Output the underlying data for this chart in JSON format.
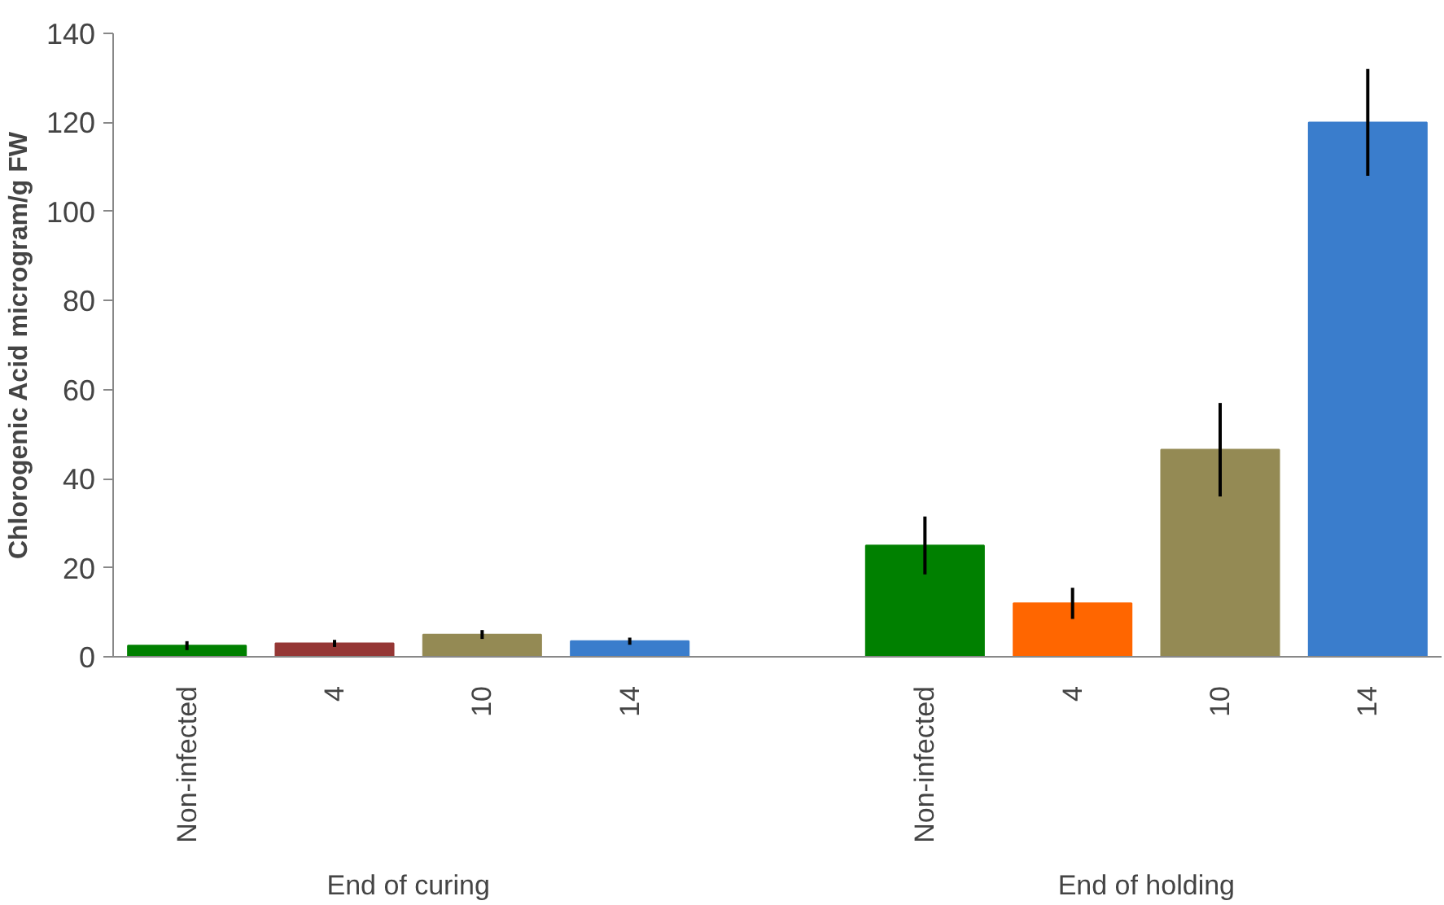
{
  "chart_data": {
    "type": "bar",
    "ylabel": "Chlorogenic Acid microgram/g FW",
    "categories": [
      "Non-infected",
      "4",
      "10",
      "14",
      null,
      "Non-infected",
      "4",
      "10",
      "14"
    ],
    "values": [
      2.5,
      3,
      5,
      3.5,
      null,
      25,
      12,
      46.5,
      120
    ],
    "errors": [
      1,
      0.8,
      1,
      0.8,
      null,
      6.5,
      3.5,
      10.5,
      12
    ],
    "colors": [
      "#008000",
      "#953735",
      "#948a54",
      "#3a7dcc",
      "#ffffff",
      "#008000",
      "#ff6600",
      "#948a54",
      "#3a7dcc"
    ],
    "annotations": [
      "End of curing",
      "End of holding"
    ],
    "ylim": [
      0,
      140
    ],
    "yticks": [
      0,
      20,
      40,
      60,
      80,
      100,
      120,
      140
    ],
    "grid": false
  }
}
